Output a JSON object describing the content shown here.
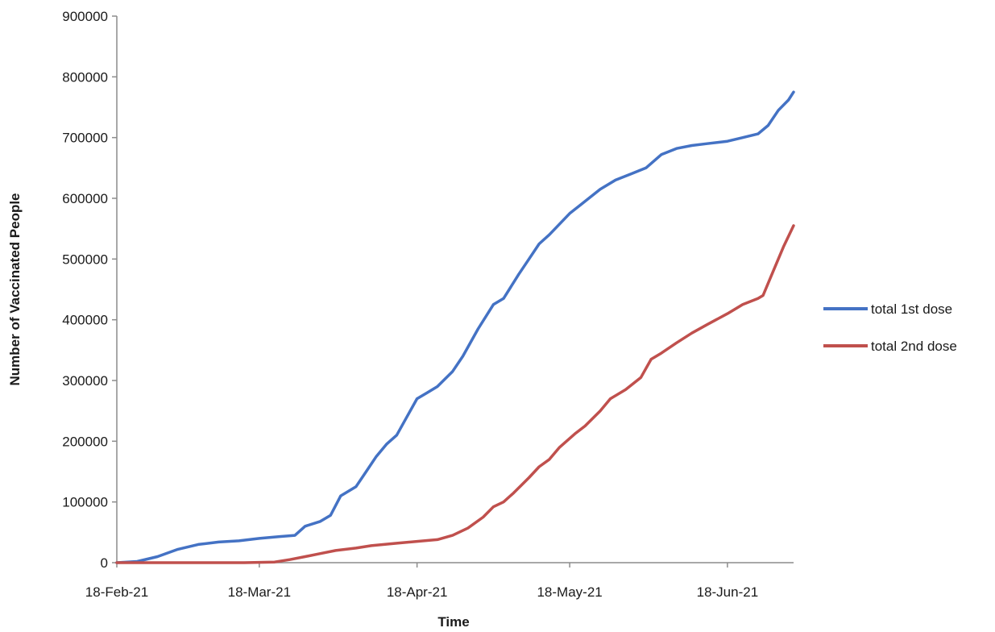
{
  "chart_data": {
    "type": "line",
    "title": "",
    "xlabel": "Time",
    "ylabel": "Number of Vaccinated People",
    "x_tick_labels": [
      "18-Feb-21",
      "18-Mar-21",
      "18-Apr-21",
      "18-May-21",
      "18-Jun-21"
    ],
    "x_tick_dates": [
      "2021-02-18",
      "2021-03-18",
      "2021-04-18",
      "2021-05-18",
      "2021-06-18"
    ],
    "xlim": [
      "2021-02-18",
      "2021-07-01"
    ],
    "ylim": [
      0,
      900000
    ],
    "y_ticks": [
      0,
      100000,
      200000,
      300000,
      400000,
      500000,
      600000,
      700000,
      800000,
      900000
    ],
    "y_tick_labels": [
      "0",
      "100000",
      "200000",
      "300000",
      "400000",
      "500000",
      "600000",
      "700000",
      "800000",
      "900000"
    ],
    "grid": false,
    "legend_position": "right",
    "series": [
      {
        "name": "total 1st dose",
        "color": "#4472c4",
        "points": [
          [
            "2021-02-18",
            0
          ],
          [
            "2021-02-22",
            2000
          ],
          [
            "2021-02-26",
            10000
          ],
          [
            "2021-03-02",
            22000
          ],
          [
            "2021-03-06",
            30000
          ],
          [
            "2021-03-10",
            34000
          ],
          [
            "2021-03-14",
            36000
          ],
          [
            "2021-03-18",
            40000
          ],
          [
            "2021-03-22",
            43000
          ],
          [
            "2021-03-25",
            45000
          ],
          [
            "2021-03-27",
            60000
          ],
          [
            "2021-03-30",
            68000
          ],
          [
            "2021-04-01",
            78000
          ],
          [
            "2021-04-03",
            110000
          ],
          [
            "2021-04-06",
            125000
          ],
          [
            "2021-04-08",
            150000
          ],
          [
            "2021-04-10",
            175000
          ],
          [
            "2021-04-12",
            195000
          ],
          [
            "2021-04-14",
            210000
          ],
          [
            "2021-04-16",
            240000
          ],
          [
            "2021-04-18",
            270000
          ],
          [
            "2021-04-20",
            280000
          ],
          [
            "2021-04-22",
            290000
          ],
          [
            "2021-04-25",
            315000
          ],
          [
            "2021-04-27",
            340000
          ],
          [
            "2021-04-30",
            385000
          ],
          [
            "2021-05-03",
            425000
          ],
          [
            "2021-05-05",
            435000
          ],
          [
            "2021-05-08",
            475000
          ],
          [
            "2021-05-10",
            500000
          ],
          [
            "2021-05-12",
            525000
          ],
          [
            "2021-05-14",
            540000
          ],
          [
            "2021-05-18",
            575000
          ],
          [
            "2021-05-21",
            595000
          ],
          [
            "2021-05-24",
            615000
          ],
          [
            "2021-05-27",
            630000
          ],
          [
            "2021-05-30",
            640000
          ],
          [
            "2021-06-02",
            650000
          ],
          [
            "2021-06-05",
            672000
          ],
          [
            "2021-06-08",
            682000
          ],
          [
            "2021-06-11",
            687000
          ],
          [
            "2021-06-14",
            690000
          ],
          [
            "2021-06-18",
            694000
          ],
          [
            "2021-06-21",
            700000
          ],
          [
            "2021-06-24",
            706000
          ],
          [
            "2021-06-26",
            720000
          ],
          [
            "2021-06-28",
            745000
          ],
          [
            "2021-06-30",
            762000
          ],
          [
            "2021-07-01",
            775000
          ]
        ]
      },
      {
        "name": "total 2nd dose",
        "color": "#c0504d",
        "points": [
          [
            "2021-02-18",
            0
          ],
          [
            "2021-03-01",
            0
          ],
          [
            "2021-03-15",
            0
          ],
          [
            "2021-03-21",
            1000
          ],
          [
            "2021-03-24",
            5000
          ],
          [
            "2021-03-27",
            10000
          ],
          [
            "2021-03-30",
            15000
          ],
          [
            "2021-04-02",
            20000
          ],
          [
            "2021-04-06",
            24000
          ],
          [
            "2021-04-09",
            28000
          ],
          [
            "2021-04-14",
            32000
          ],
          [
            "2021-04-18",
            35000
          ],
          [
            "2021-04-22",
            38000
          ],
          [
            "2021-04-25",
            45000
          ],
          [
            "2021-04-28",
            57000
          ],
          [
            "2021-05-01",
            75000
          ],
          [
            "2021-05-03",
            92000
          ],
          [
            "2021-05-05",
            100000
          ],
          [
            "2021-05-07",
            115000
          ],
          [
            "2021-05-10",
            140000
          ],
          [
            "2021-05-12",
            158000
          ],
          [
            "2021-05-14",
            170000
          ],
          [
            "2021-05-16",
            190000
          ],
          [
            "2021-05-19",
            212000
          ],
          [
            "2021-05-21",
            225000
          ],
          [
            "2021-05-24",
            250000
          ],
          [
            "2021-05-26",
            270000
          ],
          [
            "2021-05-29",
            285000
          ],
          [
            "2021-06-01",
            305000
          ],
          [
            "2021-06-03",
            335000
          ],
          [
            "2021-06-05",
            345000
          ],
          [
            "2021-06-08",
            362000
          ],
          [
            "2021-06-11",
            378000
          ],
          [
            "2021-06-14",
            392000
          ],
          [
            "2021-06-18",
            410000
          ],
          [
            "2021-06-21",
            425000
          ],
          [
            "2021-06-24",
            435000
          ],
          [
            "2021-06-25",
            440000
          ],
          [
            "2021-06-27",
            480000
          ],
          [
            "2021-06-29",
            520000
          ],
          [
            "2021-07-01",
            555000
          ]
        ]
      }
    ]
  }
}
